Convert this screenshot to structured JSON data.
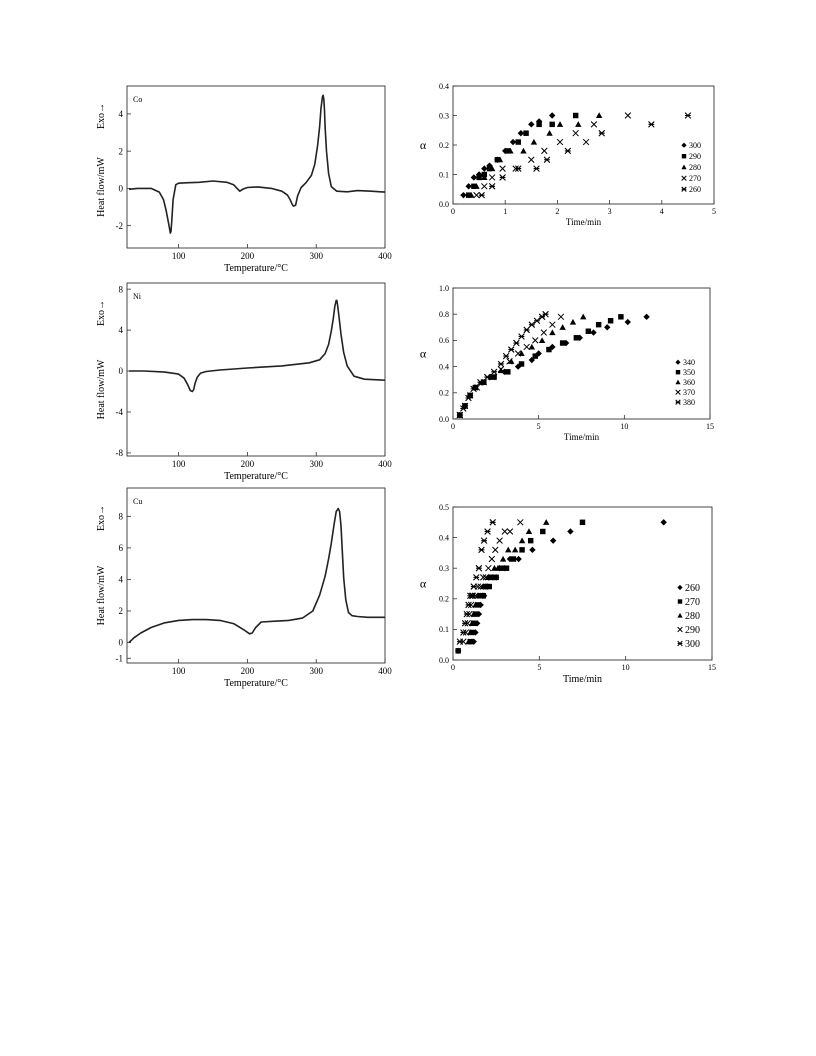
{
  "chart_data": [
    {
      "id": "dsc_co",
      "type": "line",
      "panel_label": "Co",
      "xlabel": "Temperature/°C",
      "ylabel": "Heat flow/mW",
      "exo_label": "Exo→",
      "xlim": [
        25,
        400
      ],
      "ylim": [
        -3.2,
        5.5
      ],
      "xticks": [
        100,
        200,
        300,
        400
      ],
      "yticks": [
        -2,
        0,
        2,
        4
      ],
      "grid": false,
      "series": [
        {
          "x": [
            28,
            40,
            60,
            72,
            78,
            82,
            85,
            87,
            88,
            89,
            90,
            92,
            96,
            100,
            110,
            130,
            150,
            170,
            180,
            185,
            189,
            193,
            200,
            215,
            235,
            250,
            258,
            262,
            265,
            267,
            270,
            273,
            278,
            285,
            293,
            298,
            302,
            305,
            307,
            309,
            310,
            311,
            312,
            313,
            315,
            318,
            322,
            330,
            345,
            360,
            380,
            400
          ],
          "y": [
            -0.05,
            0,
            0,
            -0.2,
            -0.6,
            -1.2,
            -1.8,
            -2.2,
            -2.4,
            -2.3,
            -1.8,
            -0.6,
            0.2,
            0.28,
            0.3,
            0.33,
            0.4,
            0.33,
            0.2,
            0,
            -0.15,
            -0.05,
            0.05,
            0.08,
            0,
            -0.15,
            -0.35,
            -0.6,
            -0.85,
            -0.95,
            -0.9,
            -0.4,
            0.05,
            0.3,
            0.7,
            1.3,
            2.3,
            3.3,
            4.3,
            4.9,
            5.0,
            4.8,
            4.2,
            3.3,
            2.0,
            0.8,
            0.1,
            -0.15,
            -0.18,
            -0.12,
            -0.15,
            -0.2
          ]
        }
      ]
    },
    {
      "id": "kin_co",
      "type": "scatter",
      "xlabel": "Time/min",
      "ylabel": "α",
      "xlim": [
        0,
        5
      ],
      "ylim": [
        0,
        0.4
      ],
      "xticks": [
        0,
        1,
        2,
        3,
        4,
        5
      ],
      "yticks": [
        0.0,
        0.1,
        0.2,
        0.3,
        0.4
      ],
      "ytick_labels": [
        "0.0",
        "0.1",
        "0.2",
        "0.3",
        "0.4"
      ],
      "grid": false,
      "legend_position": "lower-right",
      "series": [
        {
          "name": "300",
          "marker": "diamond",
          "x": [
            0.2,
            0.3,
            0.4,
            0.5,
            0.6,
            0.7,
            0.85,
            1.0,
            1.15,
            1.3,
            1.5,
            1.65,
            1.9
          ],
          "y": [
            0.03,
            0.06,
            0.09,
            0.1,
            0.12,
            0.13,
            0.15,
            0.18,
            0.21,
            0.24,
            0.27,
            0.28,
            0.3
          ]
        },
        {
          "name": "290",
          "marker": "square",
          "x": [
            0.3,
            0.4,
            0.5,
            0.6,
            0.7,
            0.85,
            1.05,
            1.25,
            1.4,
            1.65,
            1.9,
            2.35
          ],
          "y": [
            0.03,
            0.06,
            0.09,
            0.1,
            0.12,
            0.15,
            0.18,
            0.21,
            0.24,
            0.27,
            0.27,
            0.3
          ]
        },
        {
          "name": "280",
          "marker": "triangle",
          "x": [
            0.35,
            0.45,
            0.6,
            0.75,
            0.9,
            1.1,
            1.35,
            1.55,
            1.85,
            2.05,
            2.4,
            2.8
          ],
          "y": [
            0.03,
            0.06,
            0.09,
            0.12,
            0.15,
            0.18,
            0.18,
            0.21,
            0.24,
            0.27,
            0.27,
            0.3
          ]
        },
        {
          "name": "270",
          "marker": "x",
          "x": [
            0.45,
            0.6,
            0.75,
            0.95,
            1.2,
            1.5,
            1.75,
            2.05,
            2.35,
            2.55,
            2.7,
            3.35
          ],
          "y": [
            0.03,
            0.06,
            0.09,
            0.12,
            0.12,
            0.15,
            0.18,
            0.21,
            0.24,
            0.21,
            0.27,
            0.3
          ]
        },
        {
          "name": "260",
          "marker": "star",
          "x": [
            0.55,
            0.75,
            0.95,
            1.25,
            1.6,
            1.8,
            2.2,
            2.85,
            3.8,
            4.5
          ],
          "y": [
            0.03,
            0.06,
            0.09,
            0.12,
            0.12,
            0.15,
            0.18,
            0.24,
            0.27,
            0.3
          ]
        }
      ]
    },
    {
      "id": "dsc_ni",
      "type": "line",
      "panel_label": "Ni",
      "xlabel": "Temperature/°C",
      "ylabel": "Heat flow/mW",
      "exo_label": "Exo→",
      "xlim": [
        25,
        400
      ],
      "ylim": [
        -8.3,
        8.6
      ],
      "xticks": [
        100,
        200,
        300,
        400
      ],
      "yticks": [
        -8,
        -4,
        0,
        4,
        8
      ],
      "grid": false,
      "series": [
        {
          "x": [
            28,
            50,
            80,
            100,
            108,
            113,
            117,
            120,
            122,
            124,
            127,
            132,
            140,
            160,
            200,
            250,
            290,
            305,
            313,
            318,
            322,
            325,
            327,
            329,
            330,
            331,
            333,
            336,
            340,
            345,
            355,
            370,
            400
          ],
          "y": [
            0,
            0,
            -0.1,
            -0.3,
            -0.7,
            -1.3,
            -1.9,
            -2.0,
            -1.8,
            -1.2,
            -0.6,
            -0.2,
            -0.05,
            0.1,
            0.3,
            0.5,
            0.8,
            1.1,
            1.7,
            2.6,
            3.9,
            5.2,
            6.3,
            6.9,
            6.9,
            6.5,
            5.4,
            3.6,
            1.8,
            0.5,
            -0.5,
            -0.8,
            -0.9
          ]
        }
      ]
    },
    {
      "id": "kin_ni",
      "type": "scatter",
      "xlabel": "Time/min",
      "ylabel": "α",
      "xlim": [
        0,
        15
      ],
      "ylim": [
        0,
        1.0
      ],
      "xticks": [
        0,
        5,
        10,
        15
      ],
      "yticks": [
        0.0,
        0.2,
        0.4,
        0.6,
        0.8,
        1.0
      ],
      "ytick_labels": [
        "0.0",
        "0.2",
        "0.4",
        "0.6",
        "0.8",
        "1.0"
      ],
      "grid": false,
      "legend_position": "lower-right",
      "series": [
        {
          "name": "340",
          "marker": "diamond",
          "x": [
            0.4,
            0.7,
            1.0,
            1.3,
            1.7,
            2.2,
            3.0,
            3.8,
            4.6,
            5.0,
            5.8,
            6.6,
            7.4,
            8.2,
            9.0,
            10.2,
            11.3
          ],
          "y": [
            0.03,
            0.1,
            0.18,
            0.24,
            0.28,
            0.32,
            0.36,
            0.4,
            0.45,
            0.5,
            0.55,
            0.58,
            0.62,
            0.66,
            0.7,
            0.74,
            0.78
          ]
        },
        {
          "name": "350",
          "marker": "square",
          "x": [
            0.4,
            0.7,
            1.0,
            1.3,
            1.8,
            2.4,
            3.2,
            4.0,
            4.8,
            5.6,
            6.4,
            7.2,
            7.9,
            8.5,
            9.2,
            9.8
          ],
          "y": [
            0.03,
            0.1,
            0.18,
            0.24,
            0.28,
            0.32,
            0.36,
            0.42,
            0.48,
            0.53,
            0.58,
            0.62,
            0.67,
            0.72,
            0.75,
            0.78
          ]
        },
        {
          "name": "360",
          "marker": "triangle",
          "x": [
            0.4,
            0.7,
            1.0,
            1.3,
            1.7,
            2.2,
            2.8,
            3.4,
            4.0,
            4.6,
            5.2,
            5.8,
            6.4,
            7.0,
            7.6
          ],
          "y": [
            0.03,
            0.1,
            0.18,
            0.24,
            0.28,
            0.32,
            0.37,
            0.44,
            0.5,
            0.55,
            0.6,
            0.66,
            0.7,
            0.74,
            0.78
          ]
        },
        {
          "name": "370",
          "marker": "x",
          "x": [
            0.4,
            0.7,
            1.0,
            1.4,
            1.8,
            2.3,
            2.8,
            3.3,
            3.8,
            4.3,
            4.8,
            5.3,
            5.8,
            6.3
          ],
          "y": [
            0.03,
            0.1,
            0.18,
            0.24,
            0.28,
            0.32,
            0.38,
            0.44,
            0.5,
            0.55,
            0.6,
            0.66,
            0.72,
            0.78
          ]
        },
        {
          "name": "380",
          "marker": "star",
          "x": [
            0.4,
            0.6,
            0.9,
            1.2,
            1.6,
            2.0,
            2.4,
            2.8,
            3.1,
            3.4,
            3.7,
            4.0,
            4.3,
            4.6,
            4.9,
            5.2,
            5.4
          ],
          "y": [
            0.03,
            0.08,
            0.16,
            0.23,
            0.28,
            0.32,
            0.36,
            0.42,
            0.48,
            0.53,
            0.58,
            0.63,
            0.68,
            0.72,
            0.75,
            0.78,
            0.8
          ]
        }
      ]
    },
    {
      "id": "dsc_cu",
      "type": "line",
      "panel_label": "Cu",
      "xlabel": "Temperature/°C",
      "ylabel": "Heat flow/mW",
      "exo_label": "Exo→",
      "xlim": [
        25,
        400
      ],
      "ylim": [
        -1.3,
        9.8
      ],
      "xticks": [
        100,
        200,
        300,
        400
      ],
      "yticks": [
        -1,
        0,
        2,
        4,
        6,
        8
      ],
      "grid": false,
      "series": [
        {
          "x": [
            28,
            35,
            45,
            60,
            80,
            100,
            120,
            140,
            160,
            180,
            195,
            203,
            207,
            212,
            220,
            240,
            260,
            280,
            295,
            305,
            313,
            318,
            322,
            326,
            329,
            332,
            334,
            336,
            338,
            340,
            343,
            347,
            352,
            360,
            375,
            400
          ],
          "y": [
            0,
            0.3,
            0.6,
            0.95,
            1.25,
            1.4,
            1.45,
            1.45,
            1.4,
            1.2,
            0.8,
            0.55,
            0.6,
            0.95,
            1.3,
            1.35,
            1.4,
            1.55,
            2.0,
            3.0,
            4.2,
            5.3,
            6.3,
            7.5,
            8.3,
            8.5,
            8.3,
            7.4,
            5.8,
            4.1,
            2.7,
            1.9,
            1.7,
            1.65,
            1.6,
            1.6
          ]
        }
      ]
    },
    {
      "id": "kin_cu",
      "type": "scatter",
      "xlabel": "Time/min",
      "ylabel": "α",
      "xlim": [
        0,
        15
      ],
      "ylim": [
        0,
        0.5
      ],
      "xticks": [
        0,
        5,
        10,
        15
      ],
      "yticks": [
        0.0,
        0.1,
        0.2,
        0.3,
        0.4,
        0.5
      ],
      "ytick_labels": [
        "0.0",
        "0.1",
        "0.2",
        "0.3",
        "0.4",
        "0.5"
      ],
      "grid": false,
      "legend_position": "lower-right",
      "series": [
        {
          "name": "260",
          "marker": "diamond",
          "x": [
            0.3,
            1.2,
            1.3,
            1.4,
            1.5,
            1.6,
            1.7,
            1.8,
            1.9,
            2.0,
            2.1,
            2.3,
            2.5,
            2.7,
            3.0,
            3.3,
            3.8,
            4.6,
            5.8,
            6.8,
            12.2
          ],
          "y": [
            0.03,
            0.06,
            0.09,
            0.12,
            0.15,
            0.18,
            0.21,
            0.21,
            0.24,
            0.24,
            0.27,
            0.27,
            0.27,
            0.3,
            0.3,
            0.33,
            0.33,
            0.36,
            0.39,
            0.42,
            0.45
          ]
        },
        {
          "name": "270",
          "marker": "square",
          "x": [
            0.3,
            1.0,
            1.1,
            1.2,
            1.3,
            1.45,
            1.6,
            1.75,
            1.9,
            2.1,
            2.3,
            2.5,
            2.8,
            3.1,
            3.5,
            4.0,
            4.5,
            5.2,
            7.5
          ],
          "y": [
            0.03,
            0.06,
            0.09,
            0.12,
            0.15,
            0.18,
            0.21,
            0.21,
            0.24,
            0.24,
            0.27,
            0.27,
            0.3,
            0.3,
            0.33,
            0.36,
            0.39,
            0.42,
            0.45
          ]
        },
        {
          "name": "280",
          "marker": "triangle",
          "x": [
            0.9,
            1.0,
            1.1,
            1.2,
            1.3,
            1.45,
            1.6,
            1.75,
            1.9,
            2.05,
            2.2,
            2.4,
            2.6,
            2.9,
            3.2,
            3.6,
            4.0,
            4.4,
            5.4
          ],
          "y": [
            0.06,
            0.09,
            0.12,
            0.15,
            0.18,
            0.21,
            0.21,
            0.24,
            0.24,
            0.27,
            0.27,
            0.3,
            0.3,
            0.33,
            0.36,
            0.36,
            0.39,
            0.42,
            0.45
          ]
        },
        {
          "name": "290",
          "marker": "x",
          "x": [
            0.6,
            0.75,
            0.85,
            0.95,
            1.05,
            1.15,
            1.3,
            1.45,
            1.6,
            1.75,
            1.9,
            2.05,
            2.25,
            2.45,
            2.7,
            3.0,
            3.3,
            3.9
          ],
          "y": [
            0.06,
            0.09,
            0.12,
            0.15,
            0.18,
            0.21,
            0.21,
            0.24,
            0.24,
            0.27,
            0.27,
            0.3,
            0.33,
            0.36,
            0.39,
            0.42,
            0.42,
            0.45
          ]
        },
        {
          "name": "300",
          "marker": "star",
          "x": [
            0.4,
            0.6,
            0.7,
            0.8,
            0.9,
            1.0,
            1.1,
            1.2,
            1.35,
            1.5,
            1.65,
            1.8,
            2.0,
            2.3
          ],
          "y": [
            0.06,
            0.09,
            0.12,
            0.15,
            0.18,
            0.21,
            0.21,
            0.24,
            0.27,
            0.3,
            0.36,
            0.39,
            0.42,
            0.45
          ]
        }
      ]
    }
  ]
}
